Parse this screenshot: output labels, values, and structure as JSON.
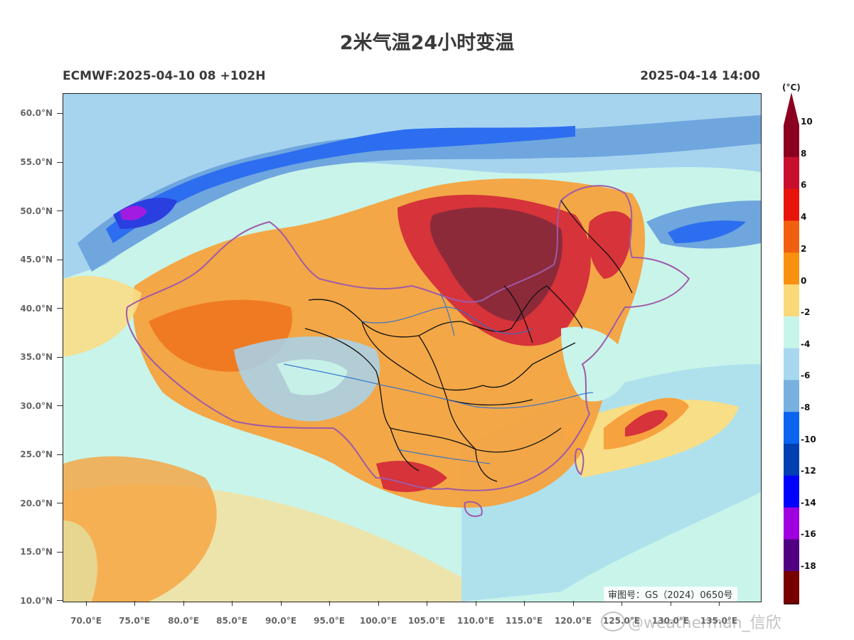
{
  "title": "2米气温24小时变温",
  "model_run": "ECMWF:2025-04-10 08 +102H",
  "valid_time": "2025-04-14 14:00",
  "unit": "(°C)",
  "lat_labels": [
    "60.0°N",
    "55.0°N",
    "50.0°N",
    "45.0°N",
    "40.0°N",
    "35.0°N",
    "30.0°N",
    "25.0°N",
    "20.0°N",
    "15.0°N",
    "10.0°N"
  ],
  "lon_labels": [
    "70.0°E",
    "75.0°E",
    "80.0°E",
    "85.0°E",
    "90.0°E",
    "95.0°E",
    "100.0°E",
    "105.0°E",
    "110.0°E",
    "115.0°E",
    "120.0°E",
    "125.0°E",
    "130.0°E",
    "135.0°E"
  ],
  "colorbar": {
    "labels": [
      "10",
      "8",
      "6",
      "4",
      "2",
      "0",
      "-2",
      "-4",
      "-6",
      "-8",
      "-10",
      "-12",
      "-14",
      "-16",
      "-18"
    ],
    "colors_top_to_bottom": [
      "#8b0020",
      "#c8102e",
      "#e8140c",
      "#f06010",
      "#f89010",
      "#fbd878",
      "#c8f5ea",
      "#a8d8ef",
      "#78b0e0",
      "#0a64f0",
      "#0040b0",
      "#0000ff",
      "#a000e0",
      "#500080",
      "#780000"
    ],
    "upper_arrow_color": "#8b0020",
    "lower_arrow_color": "#3a0000"
  },
  "review_number": "审图号：GS（2024）0650号",
  "watermark": "@weatherman_信欣",
  "palette": {
    "warm_core": "#8c2a3a",
    "strong_red": "#d6333a",
    "orange": "#f07a22",
    "light_orange": "#f6a23e",
    "pale_yellow": "#f8de86",
    "pale_cyan": "#c9f4ea",
    "light_blue": "#a6d4ef",
    "mid_blue": "#6fa6de",
    "blue": "#2d6ef0",
    "deep_blue": "#2a3fe0",
    "purple": "#a11ce0",
    "border_purple": "#a05aa8",
    "province_black": "#111111",
    "river_blue": "#2a6fd0"
  }
}
